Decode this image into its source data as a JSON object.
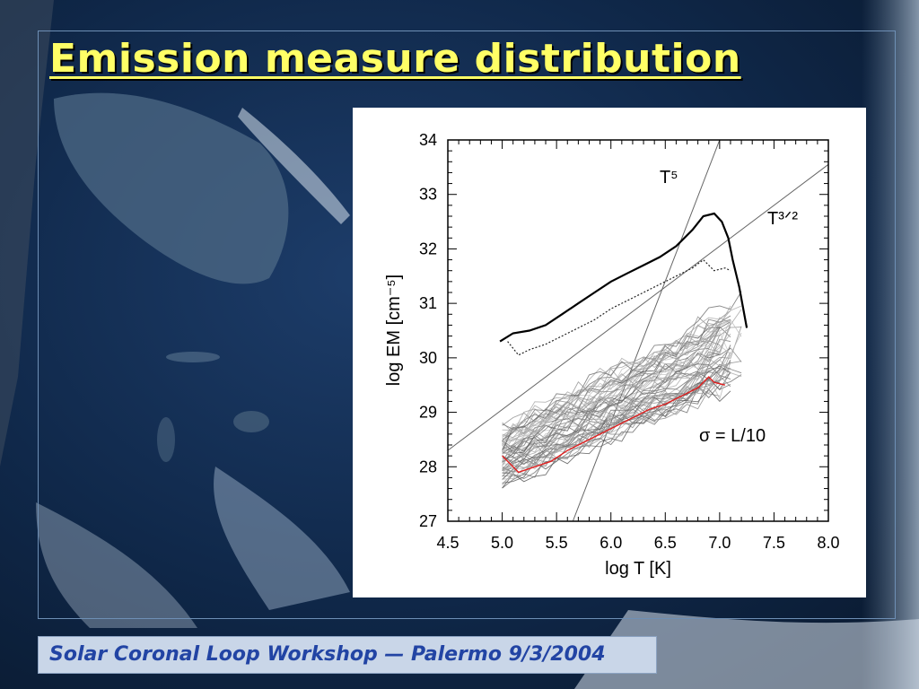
{
  "slide": {
    "title": "Emission measure distribution",
    "footer": "Solar Coronal Loop Workshop — Palermo 9/3/2004"
  },
  "colors": {
    "title": "#ffff66",
    "footer_text": "#2244a4",
    "footer_bg": "#c9d6e8",
    "red_series": "#e02020",
    "gray_bundle": "#666666"
  },
  "chart_data": {
    "type": "line",
    "xlabel": "log T [K]",
    "ylabel": "log EM [cm⁻⁵]",
    "xlim": [
      4.5,
      8.0
    ],
    "ylim": [
      27,
      34
    ],
    "xticks": [
      "4.5",
      "5.0",
      "5.5",
      "6.0",
      "6.5",
      "7.0",
      "7.5",
      "8.0"
    ],
    "yticks": [
      "27",
      "28",
      "29",
      "30",
      "31",
      "32",
      "33",
      "34"
    ],
    "annotations": [
      "T⁵",
      "T³ᐟ²",
      "σ = L/10"
    ],
    "series": [
      {
        "style": "solid-black-thick",
        "x": [
          4.98,
          5.1,
          5.25,
          5.4,
          5.55,
          5.7,
          5.85,
          6.0,
          6.15,
          6.3,
          6.45,
          6.6,
          6.75,
          6.85,
          6.95,
          7.02,
          7.08,
          7.12,
          7.18,
          7.25
        ],
        "y": [
          30.3,
          30.45,
          30.5,
          30.6,
          30.8,
          31.0,
          31.2,
          31.4,
          31.55,
          31.7,
          31.85,
          32.05,
          32.35,
          32.6,
          32.65,
          32.5,
          32.2,
          31.8,
          31.3,
          30.55
        ]
      },
      {
        "style": "dotted-black",
        "x": [
          5.05,
          5.15,
          5.25,
          5.4,
          5.55,
          5.7,
          5.85,
          6.0,
          6.15,
          6.3,
          6.45,
          6.6,
          6.75,
          6.85,
          6.95,
          7.05,
          7.1
        ],
        "y": [
          30.3,
          30.05,
          30.15,
          30.25,
          30.4,
          30.55,
          30.7,
          30.9,
          31.05,
          31.2,
          31.35,
          31.5,
          31.65,
          31.8,
          31.6,
          31.65,
          31.6
        ]
      },
      {
        "style": "red",
        "x": [
          5.0,
          5.1,
          5.15,
          5.3,
          5.45,
          5.6,
          5.75,
          5.9,
          6.05,
          6.2,
          6.35,
          6.5,
          6.65,
          6.8,
          6.9,
          6.95,
          7.05
        ],
        "y": [
          28.2,
          28.0,
          27.9,
          28.0,
          28.1,
          28.3,
          28.45,
          28.6,
          28.75,
          28.9,
          29.05,
          29.15,
          29.3,
          29.45,
          29.65,
          29.55,
          29.5
        ]
      }
    ],
    "gray_bundle": {
      "description_count": 60,
      "x_range": [
        5.0,
        7.25
      ],
      "y_low_start": 27.7,
      "y_high_start": 28.7,
      "y_low_end": 29.6,
      "y_high_end": 31.0
    },
    "reference_lines": [
      {
        "label": "T⁵",
        "slope": 5,
        "points": [
          [
            5.65,
            27.0
          ],
          [
            7.0,
            34.0
          ]
        ]
      },
      {
        "label": "T³ᐟ²",
        "slope": 1.5,
        "points": [
          [
            4.5,
            28.3
          ],
          [
            8.0,
            33.55
          ]
        ]
      }
    ]
  }
}
